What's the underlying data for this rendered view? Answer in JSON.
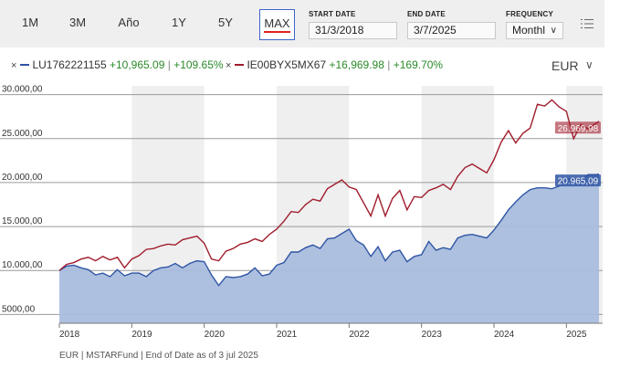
{
  "toolbar": {
    "ranges": [
      "1M",
      "3M",
      "Año",
      "1Y",
      "5Y",
      "MAX"
    ],
    "active_range": "MAX",
    "start_date_label": "START DATE",
    "start_date_value": "31/3/2018",
    "end_date_label": "END DATE",
    "end_date_value": "3/7/2025",
    "frequency_label": "FREQUENCY",
    "frequency_value": "Monthl",
    "menu_icon": "list-settings-icon"
  },
  "legend": {
    "currency": "EUR",
    "remove_symbol": "×",
    "separator": "|",
    "series": [
      {
        "name": "LU1762221155",
        "abs_change": "+10,965.09",
        "pct_change": "+109.65%",
        "color": "#2f55a4"
      },
      {
        "name": "IE00BYX5MX67",
        "abs_change": "+16,969.98",
        "pct_change": "+169.70%",
        "color": "#a01c2c"
      }
    ]
  },
  "footer": "EUR | MSTARFund | End of Date as of 3 jul 2025",
  "chart_data": {
    "type": "area",
    "x_ticks": [
      "2018",
      "2019",
      "2020",
      "2021",
      "2022",
      "2023",
      "2024",
      "2025"
    ],
    "y_ticks": [
      "5000,00",
      "10.000,00",
      "15.000,00",
      "20.000,00",
      "25.000,00",
      "30.000,00"
    ],
    "ylim": [
      4000,
      31000
    ],
    "xlim": [
      2018.0,
      2025.5
    ],
    "grid": true,
    "end_labels": [
      "20.965,09",
      "26.969,98"
    ],
    "series": [
      {
        "name": "LU1762221155",
        "color": "#2f55a4",
        "fill": "#a9bddd",
        "x": [
          2018.0,
          2018.1,
          2018.2,
          2018.3,
          2018.4,
          2018.5,
          2018.6,
          2018.7,
          2018.8,
          2018.9,
          2019.0,
          2019.1,
          2019.2,
          2019.3,
          2019.4,
          2019.5,
          2019.6,
          2019.7,
          2019.8,
          2019.9,
          2020.0,
          2020.1,
          2020.2,
          2020.3,
          2020.4,
          2020.5,
          2020.6,
          2020.7,
          2020.8,
          2020.9,
          2021.0,
          2021.1,
          2021.2,
          2021.3,
          2021.4,
          2021.5,
          2021.6,
          2021.7,
          2021.8,
          2021.9,
          2022.0,
          2022.1,
          2022.2,
          2022.3,
          2022.4,
          2022.5,
          2022.6,
          2022.7,
          2022.8,
          2022.9,
          2023.0,
          2023.1,
          2023.2,
          2023.3,
          2023.4,
          2023.5,
          2023.6,
          2023.7,
          2023.8,
          2023.9,
          2024.0,
          2024.1,
          2024.2,
          2024.3,
          2024.4,
          2024.5,
          2024.6,
          2024.7,
          2024.8,
          2024.9,
          2025.0,
          2025.1,
          2025.2,
          2025.3,
          2025.4,
          2025.45
        ],
        "values": [
          10000,
          10500,
          10600,
          10300,
          10100,
          9500,
          9700,
          9300,
          10100,
          9400,
          9700,
          9700,
          9300,
          10000,
          10300,
          10400,
          10800,
          10300,
          10800,
          11100,
          11000,
          9500,
          8300,
          9300,
          9200,
          9300,
          9600,
          10300,
          9400,
          9600,
          10600,
          10900,
          12100,
          12100,
          12600,
          12900,
          12500,
          13600,
          13700,
          14200,
          14700,
          13400,
          12900,
          11600,
          12700,
          11100,
          12100,
          12300,
          11000,
          11600,
          11800,
          13300,
          12300,
          12600,
          12400,
          13700,
          14000,
          14100,
          13900,
          13700,
          14600,
          15700,
          16900,
          17800,
          18600,
          19200,
          19400,
          19400,
          19300,
          19600,
          20400,
          20400,
          20200,
          20900,
          20900,
          20965.09
        ]
      },
      {
        "name": "IE00BYX5MX67",
        "color": "#a01c2c",
        "x": [
          2018.0,
          2018.1,
          2018.2,
          2018.3,
          2018.4,
          2018.5,
          2018.6,
          2018.7,
          2018.8,
          2018.9,
          2019.0,
          2019.1,
          2019.2,
          2019.3,
          2019.4,
          2019.5,
          2019.6,
          2019.7,
          2019.8,
          2019.9,
          2020.0,
          2020.1,
          2020.2,
          2020.3,
          2020.4,
          2020.5,
          2020.6,
          2020.7,
          2020.8,
          2020.9,
          2021.0,
          2021.1,
          2021.2,
          2021.3,
          2021.4,
          2021.5,
          2021.6,
          2021.7,
          2021.8,
          2021.9,
          2022.0,
          2022.1,
          2022.2,
          2022.3,
          2022.4,
          2022.5,
          2022.6,
          2022.7,
          2022.8,
          2022.9,
          2023.0,
          2023.1,
          2023.2,
          2023.3,
          2023.4,
          2023.5,
          2023.6,
          2023.7,
          2023.8,
          2023.9,
          2024.0,
          2024.1,
          2024.2,
          2024.3,
          2024.4,
          2024.5,
          2024.6,
          2024.7,
          2024.8,
          2024.9,
          2025.0,
          2025.1,
          2025.2,
          2025.3,
          2025.4,
          2025.45
        ],
        "values": [
          10000,
          10700,
          10900,
          11300,
          11500,
          11100,
          11600,
          11200,
          11500,
          10300,
          11300,
          11700,
          12400,
          12500,
          12800,
          13000,
          12900,
          13500,
          13700,
          13900,
          13100,
          11300,
          11100,
          12200,
          12500,
          13000,
          13200,
          13600,
          13300,
          14100,
          14700,
          15600,
          16700,
          16600,
          17500,
          18100,
          17900,
          19300,
          19800,
          20300,
          19500,
          19200,
          17700,
          16200,
          18600,
          16200,
          18200,
          19100,
          16900,
          18400,
          18300,
          19100,
          19400,
          19800,
          19200,
          20700,
          21700,
          22100,
          21600,
          21100,
          22600,
          24600,
          25900,
          24500,
          25600,
          26200,
          28900,
          28700,
          29400,
          28600,
          28100,
          25000,
          26600,
          26100,
          26700,
          26969.98
        ]
      }
    ]
  }
}
